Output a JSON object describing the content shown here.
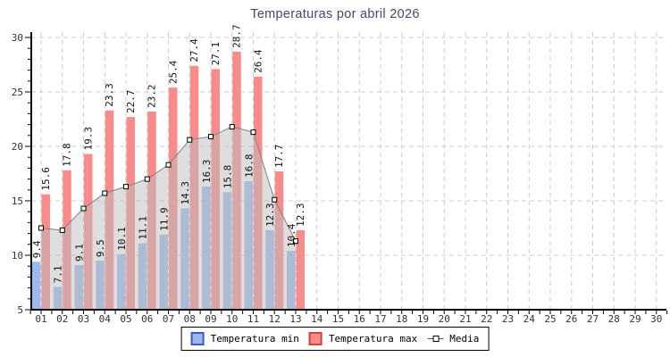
{
  "title": "Temperaturas por abril 2026",
  "colors": {
    "title": "#3e4a6e",
    "min_bar": "#9db8ec",
    "min_border": "#3c5ac8",
    "max_bar": "#f98b8b",
    "max_border": "#cc4444",
    "media_line": "#808080",
    "area_fill": "rgba(190,190,190,0.5)",
    "grid": "#cccccc",
    "axis": "#000000",
    "label_text": "#111111"
  },
  "legend": {
    "min_label": "Temperatura min",
    "max_label": "Temperatura max",
    "media_label": "Media"
  },
  "chart_data": {
    "type": "bar",
    "title": "Temperaturas por abril 2026",
    "xlabel": "",
    "ylabel": "",
    "ylim": [
      5,
      30
    ],
    "y_ticks": [
      5,
      10,
      15,
      20,
      25,
      30
    ],
    "grid": true,
    "legend_position": "bottom",
    "categories": [
      "01",
      "02",
      "03",
      "04",
      "05",
      "06",
      "07",
      "08",
      "09",
      "10",
      "11",
      "12",
      "13",
      "14",
      "15",
      "16",
      "17",
      "18",
      "19",
      "20",
      "21",
      "22",
      "23",
      "24",
      "25",
      "26",
      "27",
      "28",
      "29",
      "30"
    ],
    "series": [
      {
        "name": "Temperatura min",
        "type": "bar",
        "color": "#9db8ec",
        "values": [
          9.4,
          7.1,
          9.1,
          9.5,
          10.1,
          11.1,
          11.9,
          14.3,
          16.3,
          15.8,
          16.8,
          12.3,
          10.4
        ]
      },
      {
        "name": "Temperatura max",
        "type": "bar",
        "color": "#f98b8b",
        "values": [
          15.6,
          17.8,
          19.3,
          23.3,
          22.7,
          23.2,
          25.4,
          27.4,
          27.1,
          28.7,
          26.4,
          17.7,
          12.3
        ]
      },
      {
        "name": "Media",
        "type": "line",
        "color": "#808080",
        "area_fill": true,
        "marker": "square",
        "values": [
          12.5,
          12.3,
          14.3,
          15.7,
          16.3,
          17.0,
          18.3,
          20.6,
          20.9,
          21.8,
          21.3,
          15.1,
          11.3
        ]
      }
    ]
  }
}
